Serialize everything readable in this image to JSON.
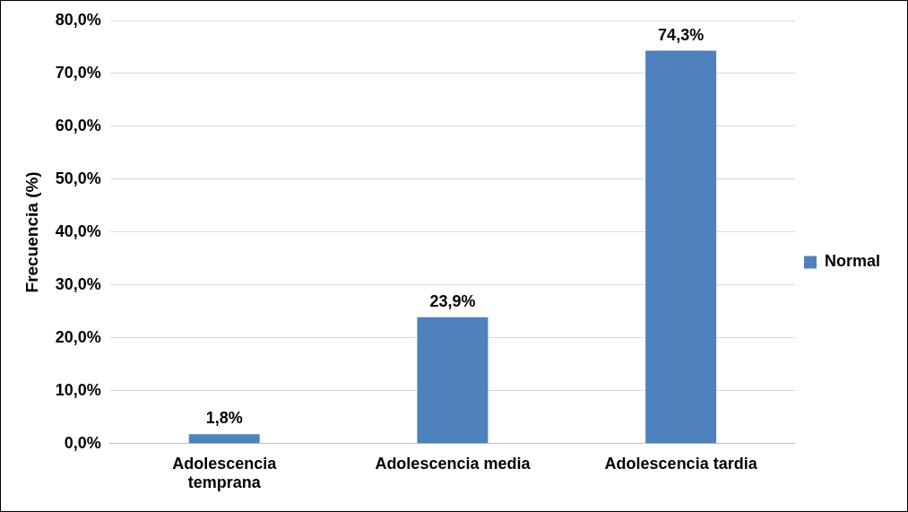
{
  "chart_data": {
    "type": "bar",
    "ylabel": "Frecuencia (%)",
    "categories": [
      "Adolescencia temprana",
      "Adolescencia media",
      "Adolescencia tardia"
    ],
    "series": [
      {
        "name": "Normal",
        "color": "#4f81bd",
        "values": [
          1.8,
          23.9,
          74.3
        ],
        "value_labels": [
          "1,8%",
          "23,9%",
          "74,3%"
        ]
      }
    ],
    "ylim": [
      0,
      80
    ],
    "yticks": [
      {
        "value": 0,
        "label": "0,0%"
      },
      {
        "value": 10,
        "label": "10,0%"
      },
      {
        "value": 20,
        "label": "20,0%"
      },
      {
        "value": 30,
        "label": "30,0%"
      },
      {
        "value": 40,
        "label": "40,0%"
      },
      {
        "value": 50,
        "label": "50,0%"
      },
      {
        "value": 60,
        "label": "60,0%"
      },
      {
        "value": 70,
        "label": "70,0%"
      },
      {
        "value": 80,
        "label": "80,0%"
      }
    ],
    "grid": "y",
    "legend": "right"
  }
}
